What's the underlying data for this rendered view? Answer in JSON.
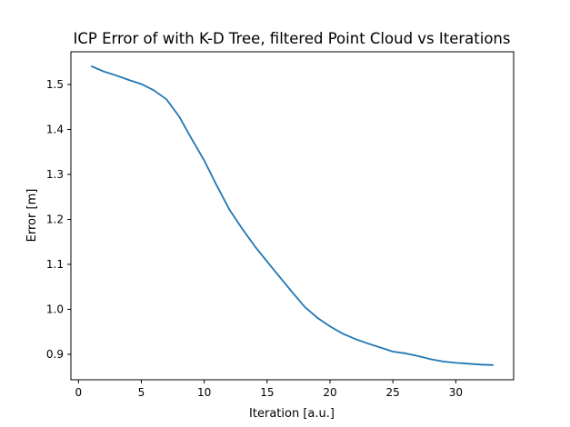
{
  "chart_data": {
    "type": "line",
    "title": "ICP Error of with K-D Tree, filtered Point Cloud vs Iterations",
    "xlabel": "Iteration [a.u.]",
    "ylabel": "Error [m]",
    "xlim": [
      -0.6,
      34.6
    ],
    "ylim": [
      0.8433,
      1.5727
    ],
    "xticks": [
      0,
      5,
      10,
      15,
      20,
      25,
      30
    ],
    "yticks": [
      0.9,
      1.0,
      1.1,
      1.2,
      1.3,
      1.4,
      1.5
    ],
    "ytick_labels": [
      "0.9",
      "1.0",
      "1.1",
      "1.2",
      "1.3",
      "1.4",
      "1.5"
    ],
    "grid": false,
    "series": [
      {
        "color": "#1f77b4",
        "x": [
          1,
          2,
          3,
          4,
          5,
          6,
          7,
          8,
          9,
          10,
          11,
          12,
          13,
          14,
          15,
          16,
          17,
          18,
          19,
          20,
          21,
          22,
          23,
          24,
          25,
          26,
          27,
          28,
          29,
          30,
          31,
          32,
          33
        ],
        "y": [
          1.541,
          1.529,
          1.52,
          1.51,
          1.501,
          1.487,
          1.467,
          1.429,
          1.379,
          1.331,
          1.275,
          1.222,
          1.18,
          1.141,
          1.106,
          1.072,
          1.038,
          1.005,
          0.981,
          0.962,
          0.946,
          0.934,
          0.924,
          0.915,
          0.906,
          0.902,
          0.896,
          0.889,
          0.884,
          0.881,
          0.879,
          0.877,
          0.876
        ]
      }
    ]
  }
}
